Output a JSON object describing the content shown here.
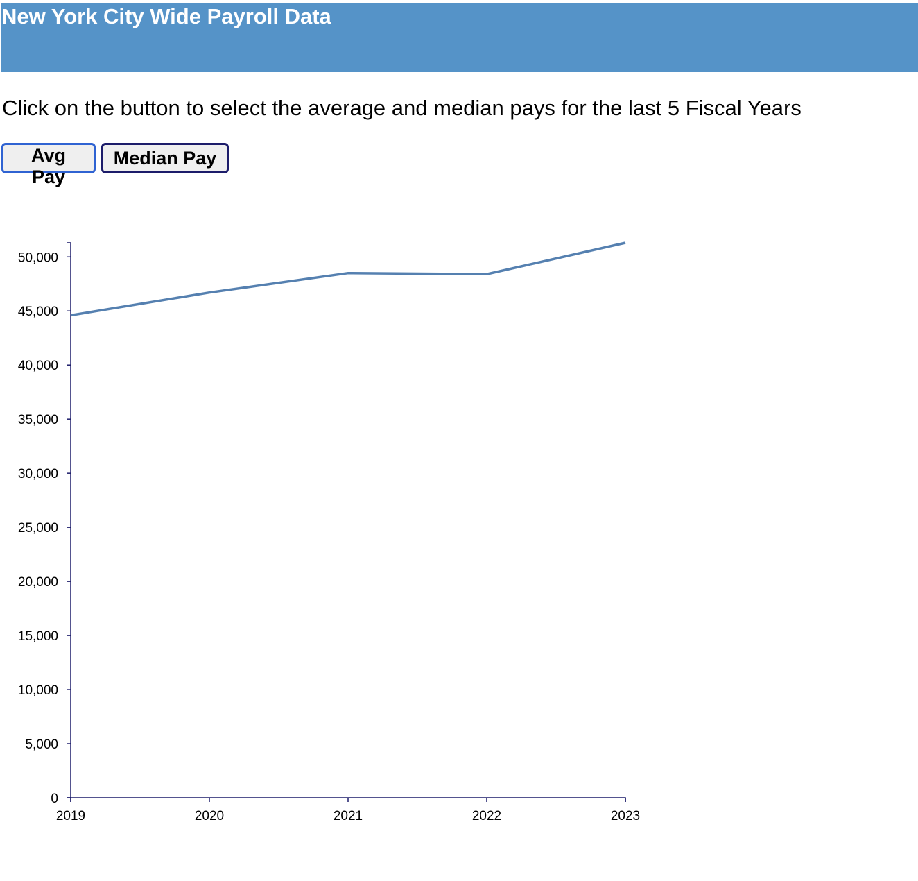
{
  "header": {
    "title": "New York City Wide Payroll Data",
    "background_color": "#5593c8"
  },
  "instructions": "Click on the button to select the average and median pays for the last 5 Fiscal Years",
  "buttons": {
    "avg_label": "Avg Pay",
    "median_label": "Median Pay"
  },
  "chart_data": {
    "type": "line",
    "x": [
      2019,
      2020,
      2021,
      2022,
      2023
    ],
    "series": [
      {
        "values": [
          44600,
          46700,
          48500,
          48400,
          51300
        ],
        "color": "#5580b0"
      }
    ],
    "title": "",
    "xlabel": "",
    "ylabel": "",
    "ylim": [
      0,
      51300
    ],
    "yticks": [
      0,
      5000,
      10000,
      15000,
      20000,
      25000,
      30000,
      35000,
      40000,
      45000,
      50000
    ],
    "ytick_labels": [
      "0",
      "5,000",
      "10,000",
      "15,000",
      "20,000",
      "25,000",
      "30,000",
      "35,000",
      "40,000",
      "45,000",
      "50,000"
    ],
    "xtick_labels": [
      "2019",
      "2020",
      "2021",
      "2022",
      "2023"
    ],
    "axis_color": "#1c1c6a",
    "grid": false
  }
}
